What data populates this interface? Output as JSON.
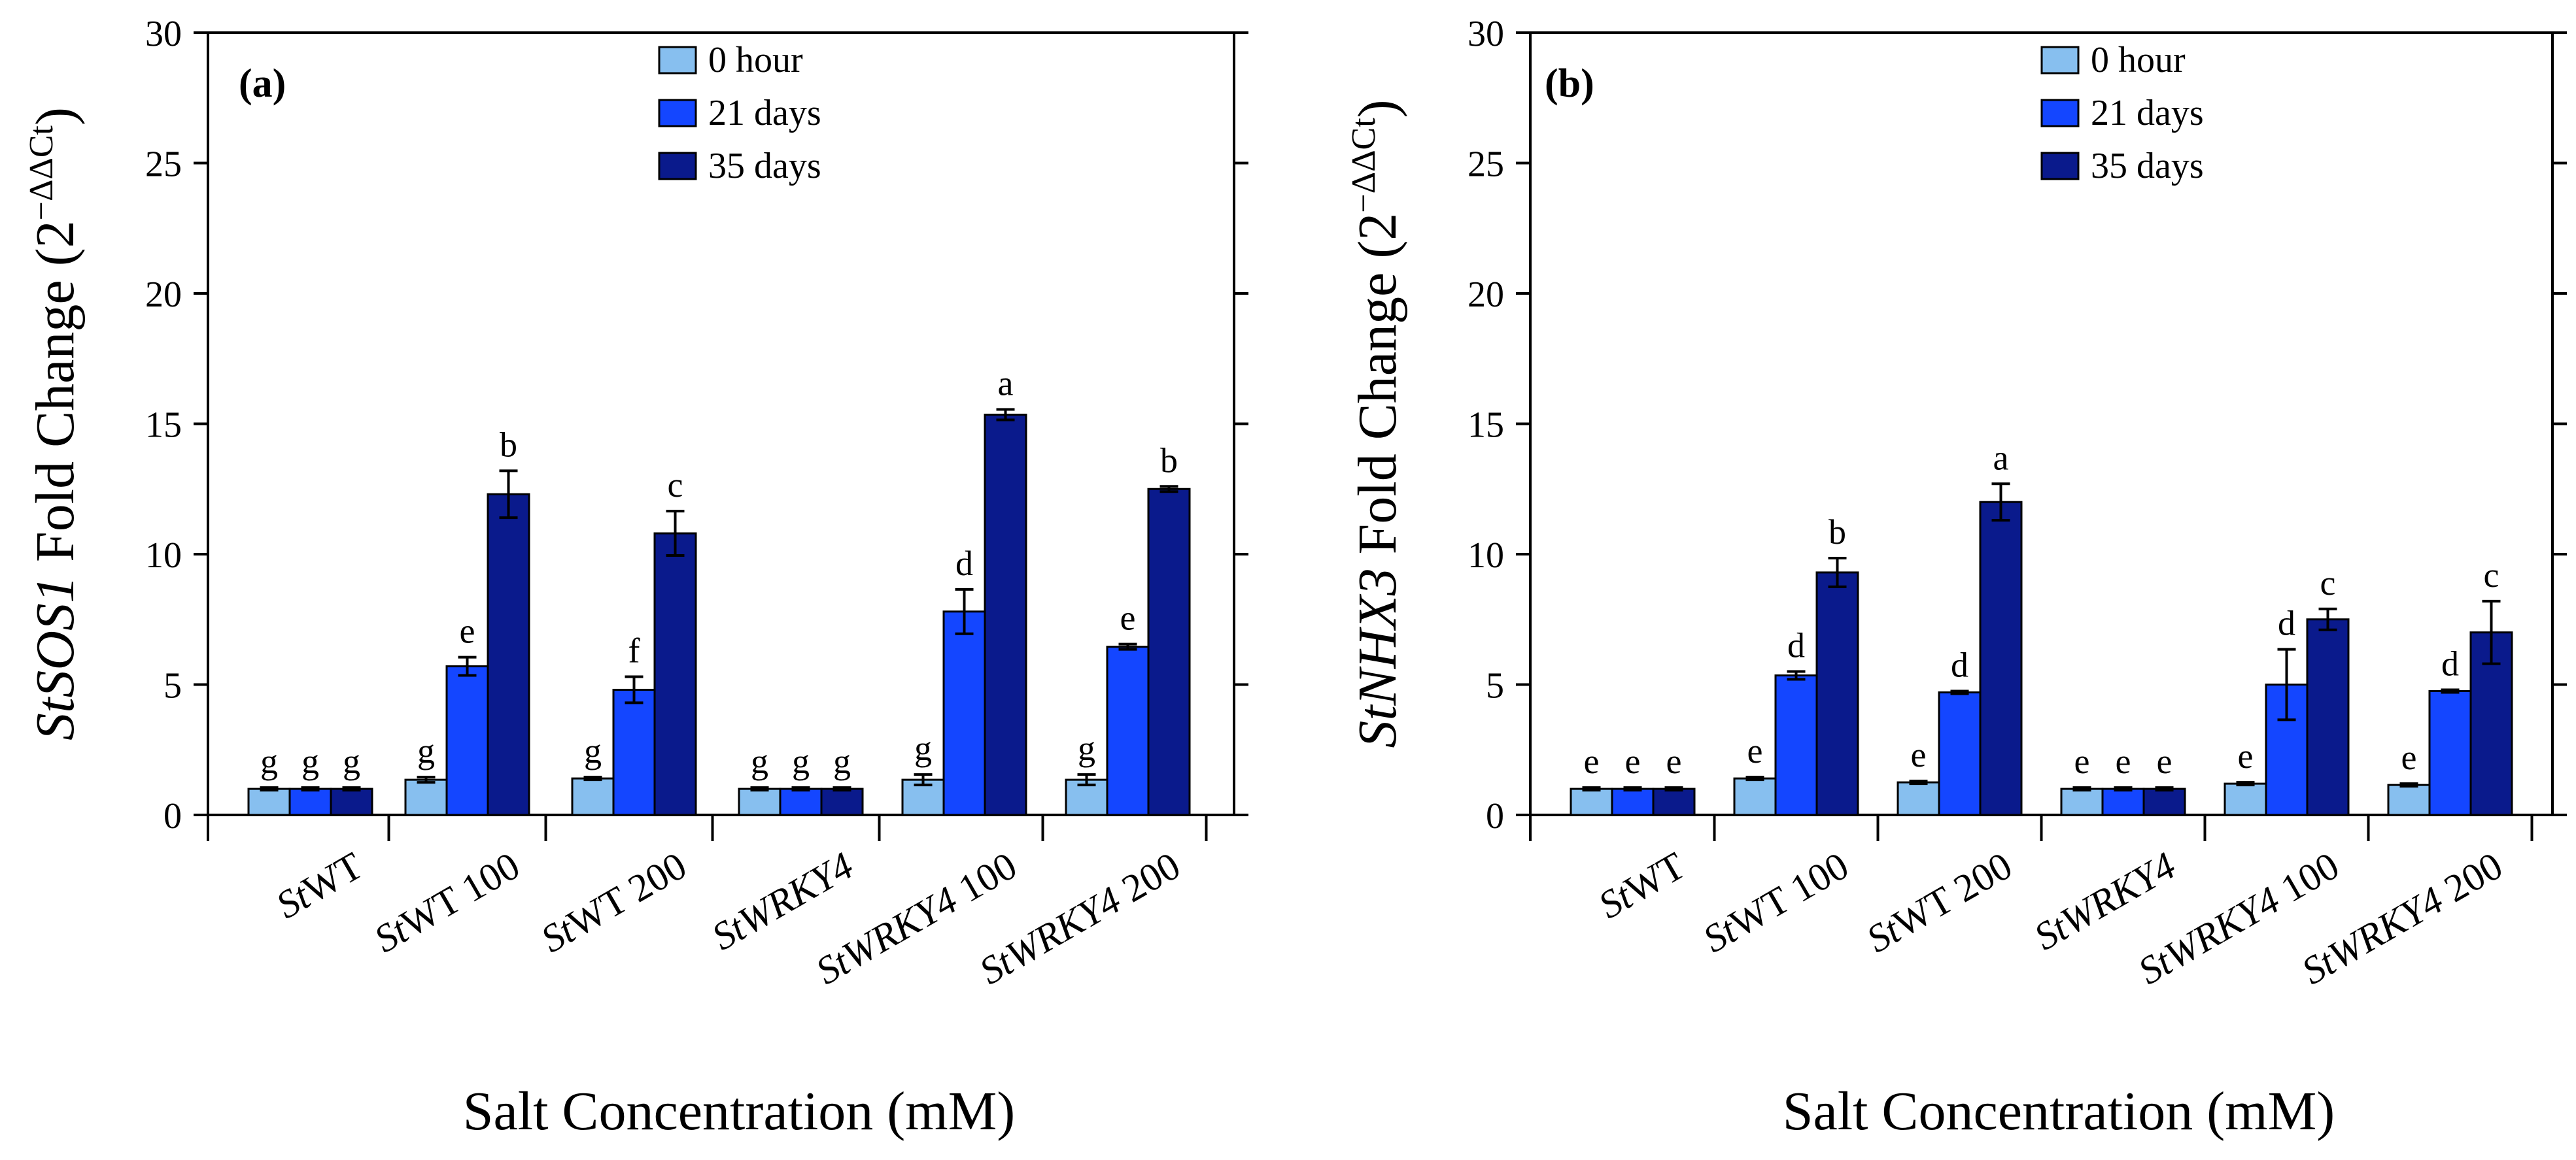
{
  "chart_data": [
    {
      "type": "bar",
      "panel_label": "(a)",
      "ylabel_gene": "StSOS1",
      "ylabel_text": " Fold Change (2",
      "ylabel_sup": "−ΔΔCt",
      "ylabel_close": ")",
      "xlabel": "Salt Concentration (mM)",
      "ylim": [
        0,
        30
      ],
      "yticks": [
        "0",
        "5",
        "10",
        "15",
        "20",
        "25",
        "30"
      ],
      "categories": [
        {
          "italic": "St",
          "normal": "WT"
        },
        {
          "italic": "St",
          "normal": "WT 100"
        },
        {
          "italic": "St",
          "normal": "WT 200"
        },
        {
          "italic": "StWRKY4",
          "normal": ""
        },
        {
          "italic": "StWRKY4",
          "normal": " 100"
        },
        {
          "italic": "StWRKY4",
          "normal": " 200"
        }
      ],
      "legend": {
        "position": "top-center"
      },
      "series": [
        {
          "name": "0 hour",
          "color": "#87bfef",
          "values": [
            1.0,
            1.35,
            1.4,
            1.0,
            1.35,
            1.35
          ],
          "errors": [
            0.05,
            0.1,
            0.05,
            0.05,
            0.2,
            0.2
          ],
          "letters": [
            "g",
            "g",
            "g",
            "g",
            "g",
            "g"
          ]
        },
        {
          "name": "21 days",
          "color": "#1446ff",
          "values": [
            1.0,
            5.7,
            4.8,
            1.0,
            7.8,
            6.45
          ],
          "errors": [
            0.05,
            0.35,
            0.5,
            0.05,
            0.85,
            0.1
          ],
          "letters": [
            "g",
            "e",
            "f",
            "g",
            "d",
            "e"
          ]
        },
        {
          "name": "35 days",
          "color": "#0a1a8c",
          "values": [
            1.0,
            12.3,
            10.8,
            1.0,
            15.35,
            12.5
          ],
          "errors": [
            0.05,
            0.9,
            0.85,
            0.05,
            0.2,
            0.1
          ],
          "letters": [
            "g",
            "b",
            "c",
            "g",
            "a",
            "b"
          ]
        }
      ]
    },
    {
      "type": "bar",
      "panel_label": "(b)",
      "ylabel_gene": "StNHX3",
      "ylabel_text": " Fold Change (2",
      "ylabel_sup": "−ΔΔCt",
      "ylabel_close": ")",
      "xlabel": "Salt Concentration (mM)",
      "ylim": [
        0,
        30
      ],
      "yticks": [
        "0",
        "5",
        "10",
        "15",
        "20",
        "25",
        "30"
      ],
      "categories": [
        {
          "italic": "St",
          "normal": "WT"
        },
        {
          "italic": "St",
          "normal": "WT 100"
        },
        {
          "italic": "St",
          "normal": "WT 200"
        },
        {
          "italic": "StWRKY4",
          "normal": ""
        },
        {
          "italic": "StWRKY4",
          "normal": " 100"
        },
        {
          "italic": "StWRKY4",
          "normal": " 200"
        }
      ],
      "legend": {
        "position": "top-center"
      },
      "series": [
        {
          "name": "0 hour",
          "color": "#87bfef",
          "values": [
            1.0,
            1.4,
            1.25,
            1.0,
            1.2,
            1.15
          ],
          "errors": [
            0.05,
            0.05,
            0.05,
            0.05,
            0.05,
            0.05
          ],
          "letters": [
            "e",
            "e",
            "e",
            "e",
            "e",
            "e"
          ]
        },
        {
          "name": "21 days",
          "color": "#1446ff",
          "values": [
            1.0,
            5.35,
            4.7,
            1.0,
            5.0,
            4.75
          ],
          "errors": [
            0.05,
            0.15,
            0.05,
            0.05,
            1.35,
            0.05
          ],
          "letters": [
            "e",
            "d",
            "d",
            "e",
            "d",
            "d"
          ]
        },
        {
          "name": "35 days",
          "color": "#0a1a8c",
          "values": [
            1.0,
            9.3,
            12.0,
            1.0,
            7.5,
            7.0
          ],
          "errors": [
            0.05,
            0.55,
            0.7,
            0.05,
            0.4,
            1.2
          ],
          "letters": [
            "e",
            "b",
            "a",
            "e",
            "c",
            "c"
          ]
        }
      ]
    }
  ]
}
